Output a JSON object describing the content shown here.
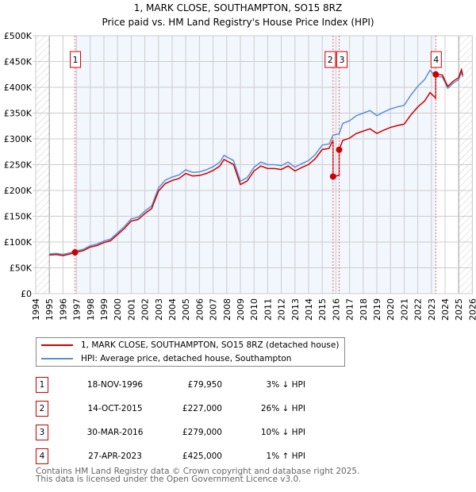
{
  "chart_data": {
    "type": "line",
    "title": "1, MARK CLOSE, SOUTHAMPTON, SO15 8RZ",
    "subtitle": "Price paid vs. HM Land Registry's House Price Index (HPI)",
    "xlim": [
      1994,
      2026
    ],
    "ylim": [
      0,
      500000
    ],
    "x_ticks": [
      "1994",
      "1995",
      "1996",
      "1997",
      "1998",
      "1999",
      "2000",
      "2001",
      "2002",
      "2003",
      "2004",
      "2005",
      "2006",
      "2007",
      "2008",
      "2009",
      "2010",
      "2011",
      "2012",
      "2013",
      "2014",
      "2015",
      "2016",
      "2017",
      "2018",
      "2019",
      "2020",
      "2021",
      "2022",
      "2023",
      "2024",
      "2025",
      "2026"
    ],
    "y_ticks": [
      {
        "v": 0,
        "label": "£0"
      },
      {
        "v": 50000,
        "label": "£50K"
      },
      {
        "v": 100000,
        "label": "£100K"
      },
      {
        "v": 150000,
        "label": "£150K"
      },
      {
        "v": 200000,
        "label": "£200K"
      },
      {
        "v": 250000,
        "label": "£250K"
      },
      {
        "v": 300000,
        "label": "£300K"
      },
      {
        "v": 350000,
        "label": "£350K"
      },
      {
        "v": 400000,
        "label": "£400K"
      },
      {
        "v": 450000,
        "label": "£450K"
      },
      {
        "v": 500000,
        "label": "£500K"
      }
    ],
    "grid": true,
    "data_range": [
      1995,
      2025.3
    ],
    "hpi_series": {
      "name": "HPI: Average price, detached house, Southampton",
      "color": "#5b8fd6",
      "x": [
        1995,
        1995.5,
        1996,
        1996.5,
        1996.88,
        1997.5,
        1998,
        1998.5,
        1999,
        1999.5,
        2000,
        2000.5,
        2001,
        2001.5,
        2002,
        2002.5,
        2003,
        2003.5,
        2004,
        2004.5,
        2005,
        2005.5,
        2006,
        2006.5,
        2007,
        2007.5,
        2007.8,
        2008.5,
        2009,
        2009.5,
        2010,
        2010.5,
        2011,
        2011.5,
        2012,
        2012.5,
        2013,
        2013.5,
        2014,
        2014.5,
        2015,
        2015.5,
        2015.79,
        2016.24,
        2016.5,
        2017,
        2017.5,
        2018,
        2018.5,
        2019,
        2019.5,
        2020,
        2020.5,
        2021,
        2021.5,
        2022,
        2022.5,
        2022.9,
        2023.32,
        2023.8,
        2024.2,
        2024.6,
        2025,
        2025.2,
        2025.3
      ],
      "y": [
        77000,
        78000,
        76000,
        79000,
        82400,
        86000,
        93000,
        96000,
        102000,
        106000,
        118000,
        130000,
        145000,
        148000,
        160000,
        170000,
        205000,
        220000,
        226000,
        230000,
        240000,
        235000,
        236000,
        240000,
        246000,
        255000,
        268000,
        258000,
        218000,
        225000,
        245000,
        255000,
        250000,
        250000,
        248000,
        255000,
        245000,
        252000,
        258000,
        270000,
        288000,
        290000,
        307000,
        310000,
        330000,
        335000,
        345000,
        350000,
        355000,
        345000,
        352000,
        358000,
        362000,
        365000,
        385000,
        402000,
        415000,
        433000,
        421000,
        420000,
        398000,
        408000,
        415000,
        430000,
        420000
      ]
    },
    "price_series": {
      "name": "1, MARK CLOSE, SOUTHAMPTON, SO15 8RZ (detached house)",
      "color": "#cc0000"
    },
    "sales": [
      {
        "n": "1",
        "x": 1996.88,
        "date": "18-NOV-1996",
        "price": 79950,
        "price_label": "£79,950",
        "hpi": "3% ↓ HPI"
      },
      {
        "n": "2",
        "x": 2015.79,
        "date": "14-OCT-2015",
        "price": 227000,
        "price_label": "£227,000",
        "hpi": "26% ↓ HPI"
      },
      {
        "n": "3",
        "x": 2016.24,
        "date": "30-MAR-2016",
        "price": 279000,
        "price_label": "£279,000",
        "hpi": "10% ↓ HPI"
      },
      {
        "n": "4",
        "x": 2023.32,
        "date": "27-APR-2023",
        "price": 425000,
        "price_label": "£425,000",
        "hpi": "1% ↑ HPI"
      }
    ]
  },
  "legend": {
    "price": "1, MARK CLOSE, SOUTHAMPTON, SO15 8RZ (detached house)",
    "hpi": "HPI: Average price, detached house, Southampton"
  },
  "footer": {
    "line1": "Contains HM Land Registry data © Crown copyright and database right 2025.",
    "line2": "This data is licensed under the Open Government Licence v3.0."
  }
}
